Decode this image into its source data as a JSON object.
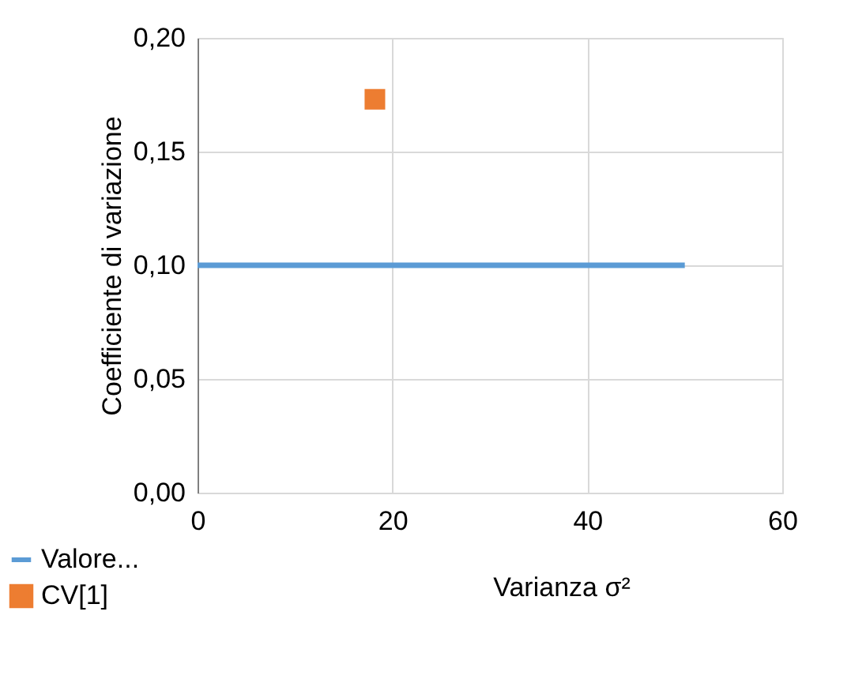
{
  "chart_data": {
    "type": "line",
    "xlabel": "Varianza σ²",
    "ylabel": "Coefficiente di variazione",
    "xlim": [
      0,
      60
    ],
    "xticks": [
      0,
      20,
      40,
      60
    ],
    "ylim": [
      0,
      0.2
    ],
    "yticks": [
      {
        "value": 0,
        "label": "0,00"
      },
      {
        "value": 0.05,
        "label": "0,05"
      },
      {
        "value": 0.1,
        "label": "0,10"
      },
      {
        "value": 0.15,
        "label": "0,15"
      },
      {
        "value": 0.2,
        "label": "0,20"
      }
    ],
    "grid": true,
    "legend": "bottom left",
    "series": [
      {
        "name": "Valore...",
        "color": "#5b9bd5",
        "x": [
          0,
          50
        ],
        "values": [
          0.1,
          0.1
        ],
        "marker": "none"
      },
      {
        "name": "CV[1]",
        "type": "scatter",
        "color": "#ed7d31",
        "x": [
          18.2
        ],
        "values": [
          0.173
        ],
        "marker": "square"
      }
    ]
  }
}
